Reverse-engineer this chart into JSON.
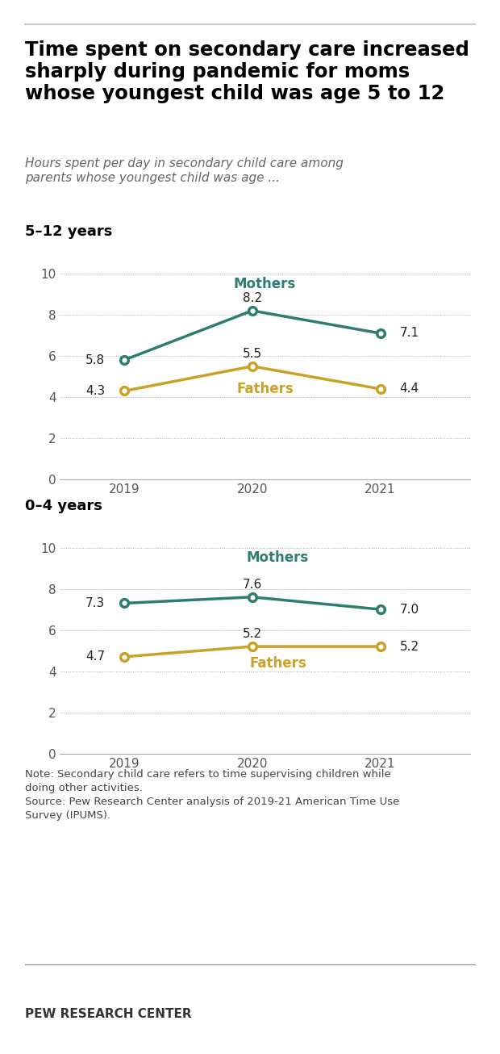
{
  "title": "Time spent on secondary care increased\nsharply during pandemic for moms\nwhose youngest child was age 5 to 12",
  "subtitle": "Hours spent per day in secondary child care among\nparents whose youngest child was age ...",
  "section1_label": "5–12 years",
  "section2_label": "0–4 years",
  "years": [
    2019,
    2020,
    2021
  ],
  "mothers_512": [
    5.8,
    8.2,
    7.1
  ],
  "fathers_512": [
    4.3,
    5.5,
    4.4
  ],
  "mothers_04": [
    7.3,
    7.6,
    7.0
  ],
  "fathers_04": [
    4.7,
    5.2,
    5.2
  ],
  "mothers_color": "#2E7D6E",
  "fathers_color": "#C9A227",
  "note": "Note: Secondary child care refers to time supervising children while\ndoing other activities.\nSource: Pew Research Center analysis of 2019-21 American Time Use\nSurvey (IPUMS).",
  "footer": "PEW RESEARCH CENTER",
  "background_color": "#FFFFFF",
  "grid_color": "#AAAAAA",
  "axis_label_color": "#555555",
  "title_color": "#000000",
  "subtitle_color": "#666666",
  "section_label_color": "#000000",
  "yticks": [
    0,
    2,
    4,
    6,
    8,
    10
  ],
  "ylim": [
    0,
    11
  ]
}
